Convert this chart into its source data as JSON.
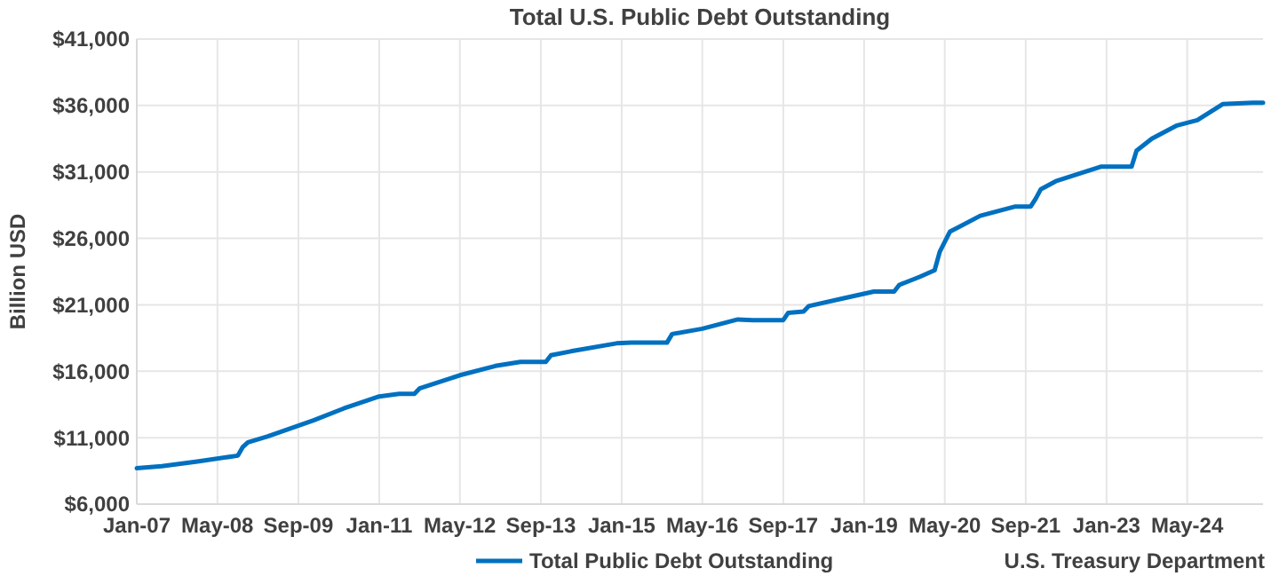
{
  "chart_data": {
    "type": "line",
    "title": "Total U.S. Public Debt Outstanding",
    "ylabel": "Billion USD",
    "x": [
      "2007-01",
      "2007-06",
      "2008-01",
      "2008-09",
      "2008-10",
      "2008-11",
      "2009-03",
      "2009-12",
      "2010-06",
      "2011-01",
      "2011-05",
      "2011-08",
      "2011-09",
      "2012-05",
      "2012-12",
      "2013-05",
      "2013-10",
      "2013-11",
      "2014-03",
      "2014-12",
      "2015-03",
      "2015-10",
      "2015-11",
      "2016-05",
      "2016-12",
      "2017-03",
      "2017-09",
      "2017-10",
      "2018-01",
      "2018-02",
      "2018-09",
      "2019-03",
      "2019-07",
      "2019-08",
      "2019-12",
      "2020-03",
      "2020-04",
      "2020-06",
      "2020-12",
      "2021-07",
      "2021-10",
      "2021-11",
      "2021-12",
      "2022-03",
      "2022-12",
      "2023-01",
      "2023-06",
      "2023-07",
      "2023-10",
      "2024-03",
      "2024-07",
      "2024-12",
      "2025-06",
      "2025-08"
    ],
    "series": [
      {
        "name": "Total Public Debt Outstanding",
        "color": "#0070c0",
        "values": [
          8700,
          8850,
          9200,
          9650,
          10300,
          10650,
          11100,
          12300,
          13200,
          14100,
          14300,
          14300,
          14700,
          15700,
          16400,
          16700,
          16700,
          17200,
          17500,
          18100,
          18150,
          18150,
          18800,
          19200,
          19900,
          19850,
          19850,
          20400,
          20500,
          20900,
          21500,
          22000,
          22000,
          22500,
          23100,
          23600,
          25000,
          26500,
          27700,
          28400,
          28400,
          29000,
          29700,
          30300,
          31400,
          31400,
          31400,
          32600,
          33500,
          34500,
          34900,
          36100,
          36200,
          36200
        ]
      }
    ],
    "xlim": [
      "2007-01",
      "2025-08"
    ],
    "xticks": [
      {
        "value": "2007-01",
        "label": "Jan-07"
      },
      {
        "value": "2008-05",
        "label": "May-08"
      },
      {
        "value": "2009-09",
        "label": "Sep-09"
      },
      {
        "value": "2011-01",
        "label": "Jan-11"
      },
      {
        "value": "2012-05",
        "label": "May-12"
      },
      {
        "value": "2013-09",
        "label": "Sep-13"
      },
      {
        "value": "2015-01",
        "label": "Jan-15"
      },
      {
        "value": "2016-05",
        "label": "May-16"
      },
      {
        "value": "2017-09",
        "label": "Sep-17"
      },
      {
        "value": "2019-01",
        "label": "Jan-19"
      },
      {
        "value": "2020-05",
        "label": "May-20"
      },
      {
        "value": "2021-09",
        "label": "Sep-21"
      },
      {
        "value": "2023-01",
        "label": "Jan-23"
      },
      {
        "value": "2024-05",
        "label": "May-24"
      }
    ],
    "ylim": [
      6000,
      41000
    ],
    "yticks": [
      {
        "value": 6000,
        "label": "$6,000"
      },
      {
        "value": 11000,
        "label": "$11,000"
      },
      {
        "value": 16000,
        "label": "$16,000"
      },
      {
        "value": 21000,
        "label": "$21,000"
      },
      {
        "value": 26000,
        "label": "$26,000"
      },
      {
        "value": 31000,
        "label": "$31,000"
      },
      {
        "value": 36000,
        "label": "$36,000"
      },
      {
        "value": 41000,
        "label": "$41,000"
      }
    ],
    "grid": true,
    "legend": "bottom",
    "marker": "none",
    "line_style": "solid",
    "annotations": [
      "U.S. Treasury Department"
    ]
  }
}
